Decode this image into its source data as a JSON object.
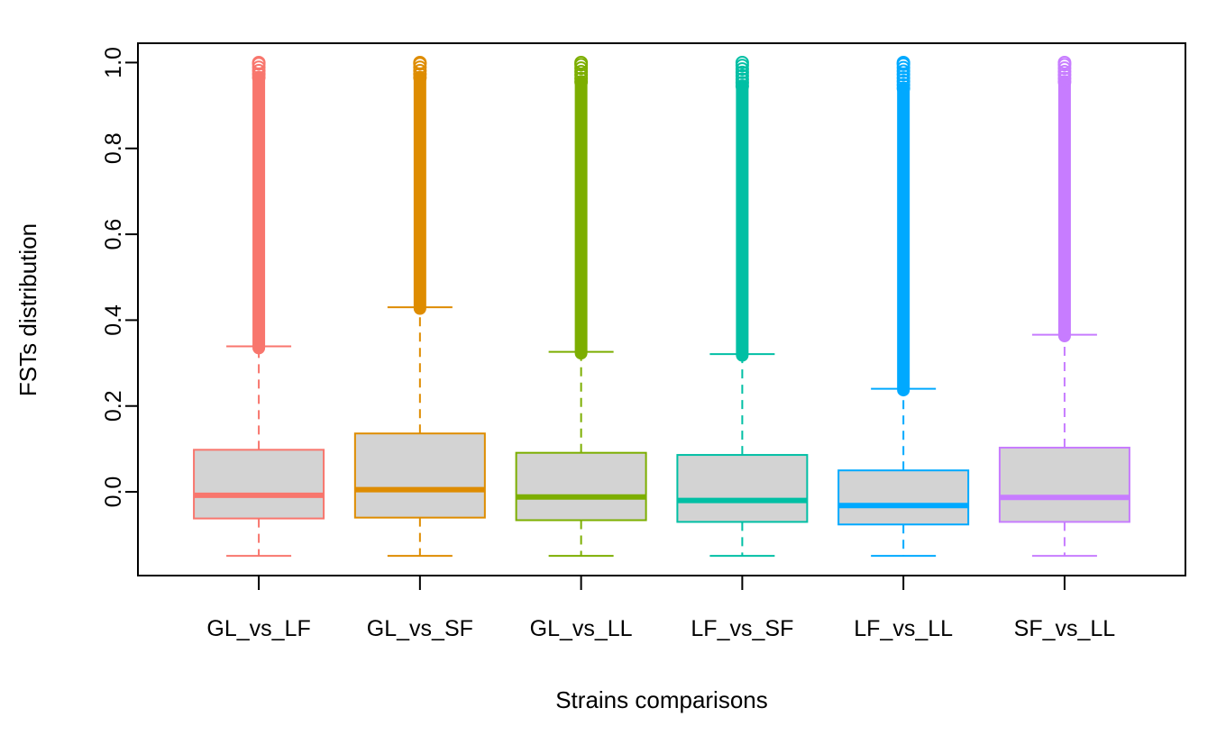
{
  "chart_data": {
    "type": "box",
    "title": "",
    "xlabel": "Strains comparisons",
    "ylabel": "FSTs distribution",
    "ylim": [
      -0.195,
      1.045
    ],
    "yticks": [
      0.0,
      0.2,
      0.4,
      0.6,
      0.8,
      1.0
    ],
    "ytick_labels": [
      "0.0",
      "0.2",
      "0.4",
      "0.6",
      "0.8",
      "1.0"
    ],
    "grid": false,
    "box_fill": "#d3d3d3",
    "categories": [
      "GL_vs_LF",
      "GL_vs_SF",
      "GL_vs_LL",
      "LF_vs_SF",
      "LF_vs_LL",
      "SF_vs_LL"
    ],
    "colors": [
      "#f8766d",
      "#de8c00",
      "#7cae00",
      "#00bfa4",
      "#00a9ff",
      "#c77cff"
    ],
    "boxes": [
      {
        "category": "GL_vs_LF",
        "whisker_low": -0.149,
        "q1": -0.062,
        "median": -0.008,
        "q3": 0.098,
        "whisker_high": 0.339,
        "outliers_from": 0.335,
        "outliers_to": 0.965,
        "outlier_max": 1.0
      },
      {
        "category": "GL_vs_SF",
        "whisker_low": -0.149,
        "q1": -0.06,
        "median": 0.005,
        "q3": 0.136,
        "whisker_high": 0.43,
        "outliers_from": 0.427,
        "outliers_to": 0.965,
        "outlier_max": 1.0
      },
      {
        "category": "GL_vs_LL",
        "whisker_low": -0.149,
        "q1": -0.066,
        "median": -0.012,
        "q3": 0.091,
        "whisker_high": 0.326,
        "outliers_from": 0.323,
        "outliers_to": 0.955,
        "outlier_max": 1.0
      },
      {
        "category": "LF_vs_SF",
        "whisker_low": -0.149,
        "q1": -0.07,
        "median": -0.02,
        "q3": 0.086,
        "whisker_high": 0.321,
        "outliers_from": 0.318,
        "outliers_to": 0.945,
        "outlier_max": 1.0
      },
      {
        "category": "LF_vs_LL",
        "whisker_low": -0.149,
        "q1": -0.076,
        "median": -0.032,
        "q3": 0.05,
        "whisker_high": 0.24,
        "outliers_from": 0.237,
        "outliers_to": 0.94,
        "outlier_max": 1.0
      },
      {
        "category": "SF_vs_LL",
        "whisker_low": -0.149,
        "q1": -0.07,
        "median": -0.013,
        "q3": 0.103,
        "whisker_high": 0.366,
        "outliers_from": 0.363,
        "outliers_to": 0.955,
        "outlier_max": 1.0
      }
    ]
  }
}
